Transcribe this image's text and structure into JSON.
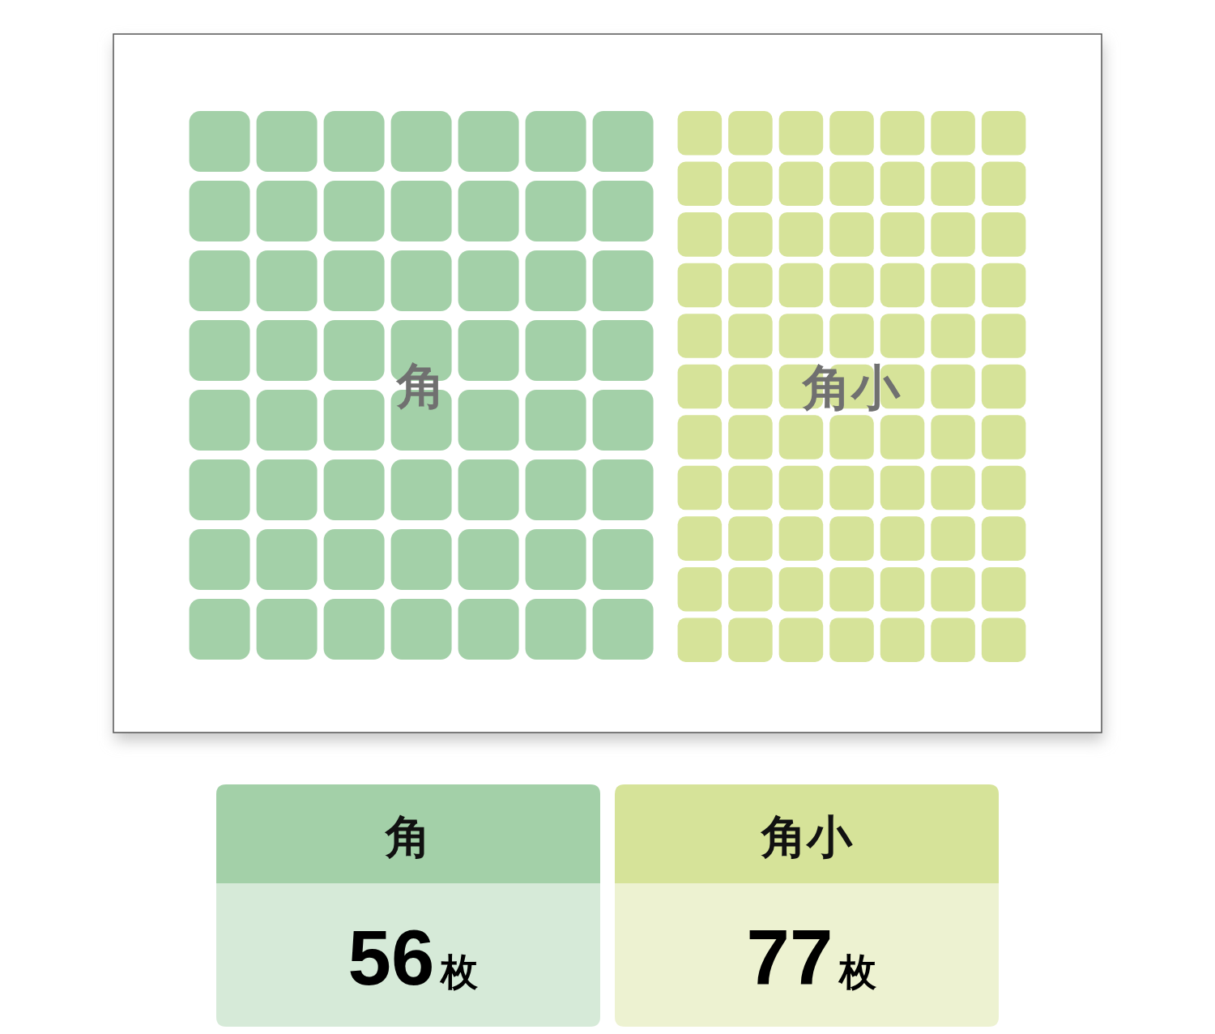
{
  "chart_data": {
    "type": "other",
    "categories": [
      "角",
      "角小"
    ],
    "values": [
      56,
      77
    ],
    "colors": [
      "#a3d0a8",
      "#d6e399"
    ],
    "value_labels": [
      "56枚",
      "77枚"
    ]
  }
}
